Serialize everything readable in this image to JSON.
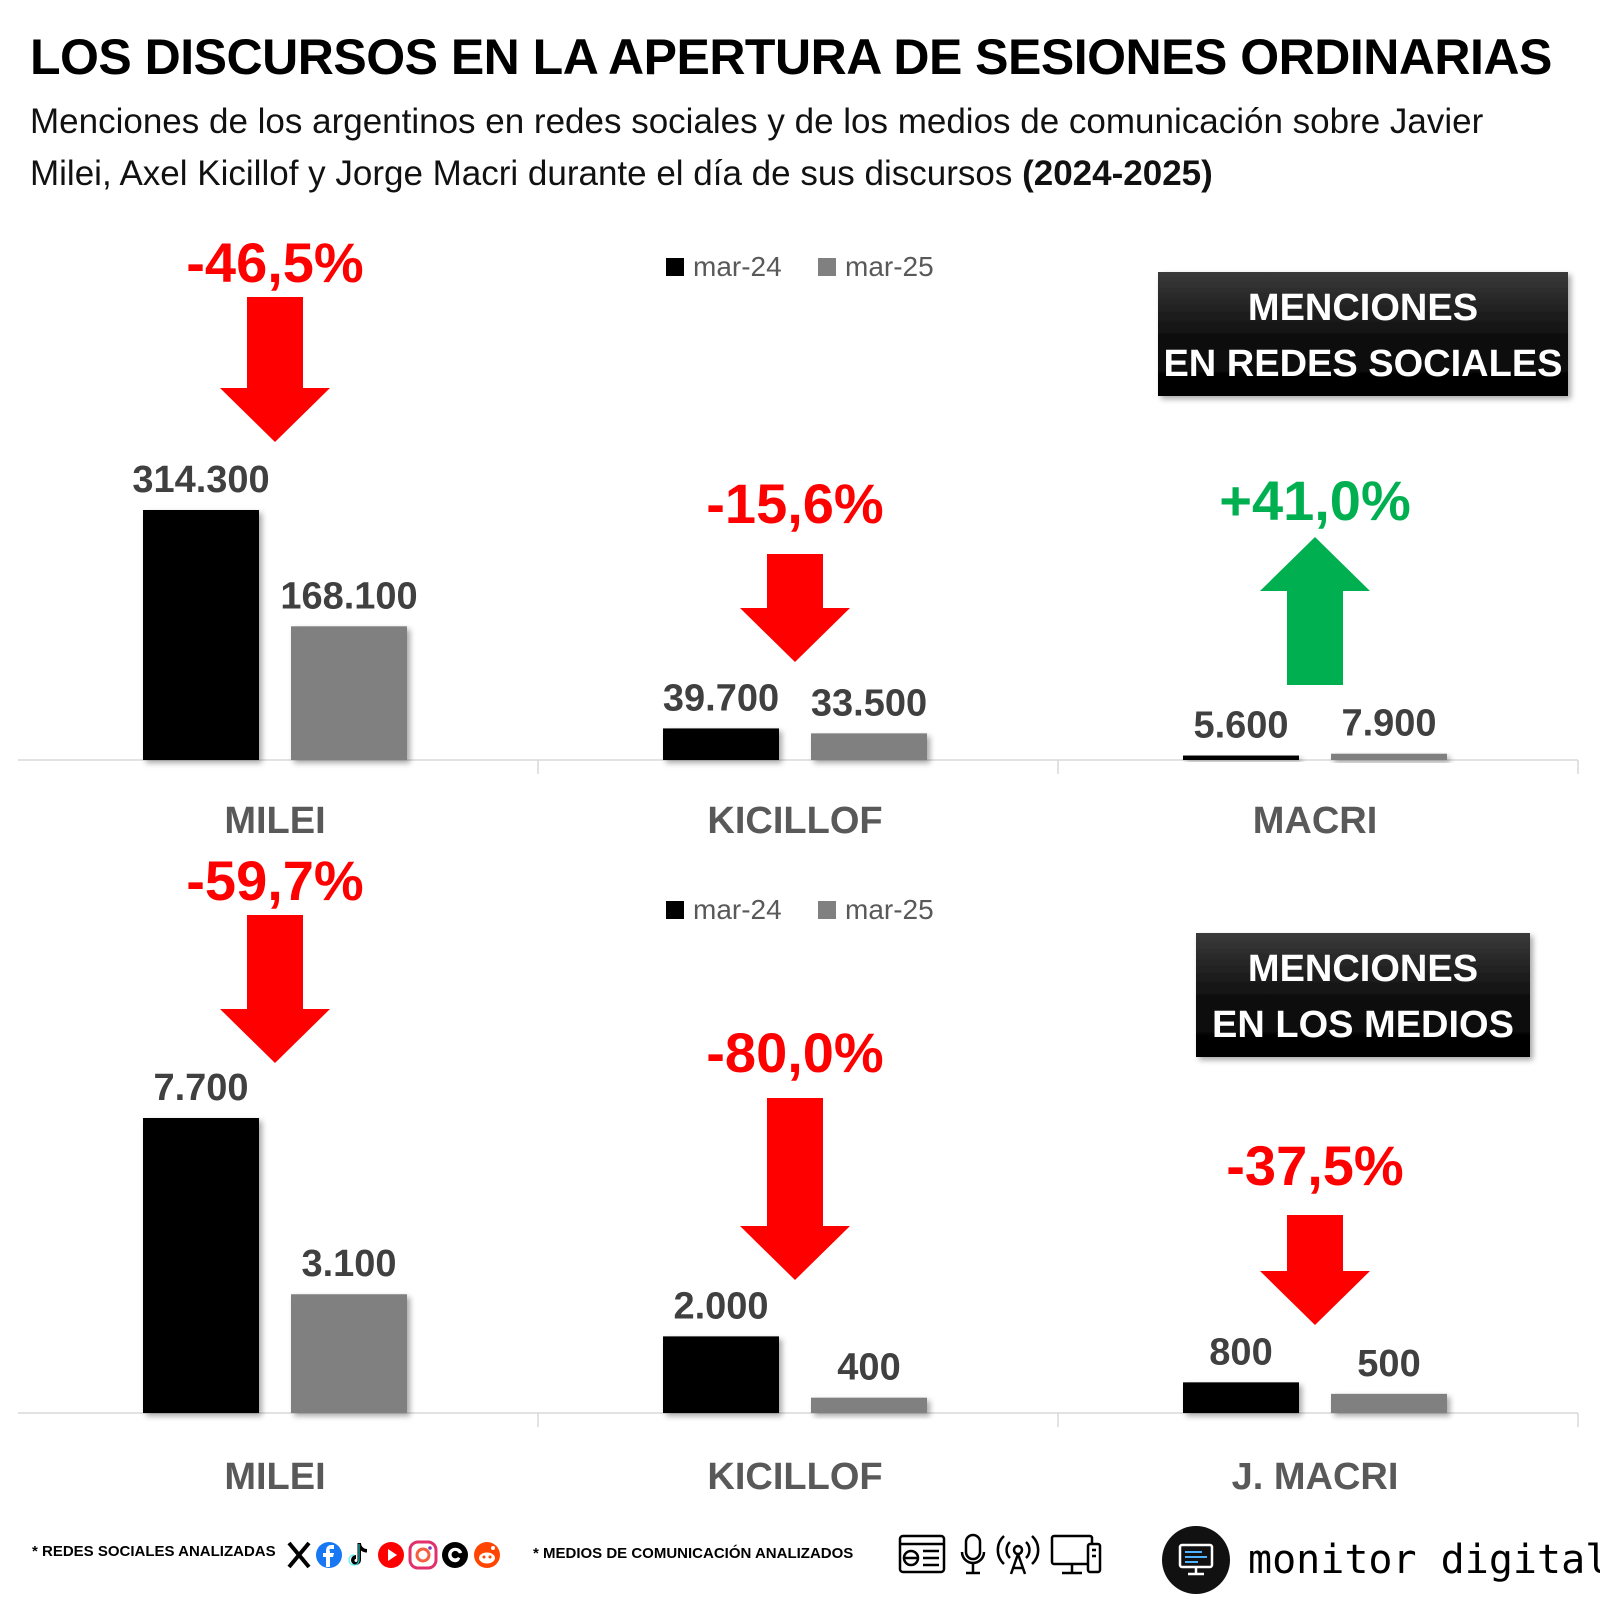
{
  "title": "LOS DISCURSOS EN LA APERTURA DE SESIONES ORDINARIAS",
  "subtitle_text": "Menciones de los argentinos en redes sociales y de los medios de comunicación sobre Javier Milei, Axel Kicillof y Jorge Macri durante el día de sus discursos",
  "subtitle_years": "(2024-2025)",
  "colors": {
    "mar24": "#000000",
    "mar25": "#808080",
    "down": "#ff0000",
    "up": "#00b050",
    "value_text": "#404040",
    "category_text": "#595959"
  },
  "chart_data": [
    {
      "type": "bar",
      "title": "MENCIONES EN REDES SOCIALES",
      "title_lines": [
        "MENCIONES",
        "EN REDES SOCIALES"
      ],
      "categories": [
        "MILEI",
        "KICILLOF",
        "MACRI"
      ],
      "series": [
        {
          "name": "mar-24",
          "values": [
            314300,
            39700,
            5600
          ],
          "labels": [
            "314.300",
            "39.700",
            "5.600"
          ]
        },
        {
          "name": "mar-25",
          "values": [
            168100,
            33500,
            7900
          ],
          "labels": [
            "168.100",
            "33.500",
            "7.900"
          ]
        }
      ],
      "changes": [
        {
          "label": "-46,5%",
          "direction": "down"
        },
        {
          "label": "-15,6%",
          "direction": "down"
        },
        {
          "label": "+41,0%",
          "direction": "up"
        }
      ],
      "ylim": [
        0,
        314300
      ],
      "legend": "top-center"
    },
    {
      "type": "bar",
      "title": "MENCIONES EN LOS MEDIOS",
      "title_lines": [
        "MENCIONES",
        "EN LOS MEDIOS"
      ],
      "categories": [
        "MILEI",
        "KICILLOF",
        "J. MACRI"
      ],
      "series": [
        {
          "name": "mar-24",
          "values": [
            7700,
            2000,
            800
          ],
          "labels": [
            "7.700",
            "2.000",
            "800"
          ]
        },
        {
          "name": "mar-25",
          "values": [
            3100,
            400,
            500
          ],
          "labels": [
            "3.100",
            "400",
            "500"
          ]
        }
      ],
      "changes": [
        {
          "label": "-59,7%",
          "direction": "down"
        },
        {
          "label": "-80,0%",
          "direction": "down"
        },
        {
          "label": "-37,5%",
          "direction": "down"
        }
      ],
      "ylim": [
        0,
        7700
      ],
      "legend": "top-center"
    }
  ],
  "footer": {
    "social_note": "* REDES SOCIALES ANALIZADAS",
    "media_note": "* MEDIOS DE COMUNICACIÓN ANALIZADOS",
    "social_icons": [
      "x-icon",
      "facebook-icon",
      "tiktok-icon",
      "youtube-icon",
      "instagram-icon",
      "threads-icon",
      "reddit-icon"
    ],
    "media_icons": [
      "newspaper-icon",
      "microphone-icon",
      "radio-antenna-icon",
      "tv-monitor-icon"
    ],
    "brand": "monitor digital"
  }
}
